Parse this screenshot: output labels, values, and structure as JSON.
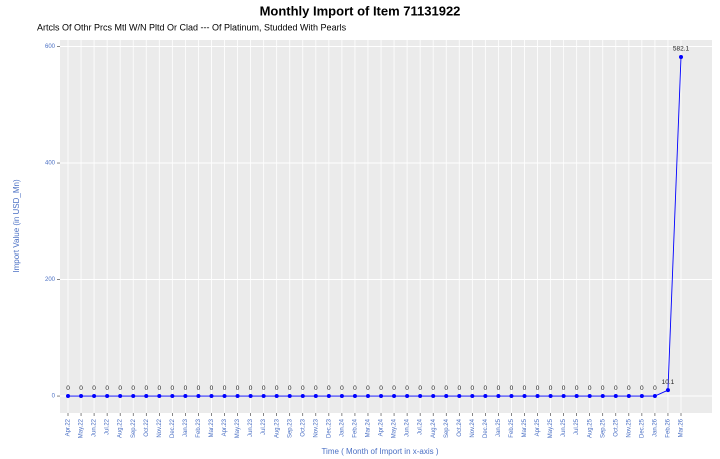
{
  "chart_data": {
    "type": "line",
    "title": "Monthly Import of Item 71131922",
    "subtitle": "Artcls Of Othr Prcs Mtl W/N Pltd Or Clad --- Of Platinum, Studded With Pearls",
    "x_label": "Time ( Month of Import in x-axis )",
    "y_label": "Import  Value (in USD_Mn)",
    "categories": [
      "Apr.22",
      "May.22",
      "Jun.22",
      "Jul.22",
      "Aug.22",
      "Sep.22",
      "Oct.22",
      "Nov.22",
      "Dec.22",
      "Jan.23",
      "Feb.23",
      "Mar.23",
      "Apr.23",
      "May.23",
      "Jun.23",
      "Jul.23",
      "Aug.23",
      "Sep.23",
      "Oct.23",
      "Nov.23",
      "Dec.23",
      "Jan.24",
      "Feb.24",
      "Mar.24",
      "Apr.24",
      "May.24",
      "Jun.24",
      "Jul.24",
      "Aug.24",
      "Sep.24",
      "Oct.24",
      "Nov.24",
      "Dec.24",
      "Jan.25",
      "Feb.25",
      "Mar.25",
      "Apr.25",
      "May.25",
      "Jun.25",
      "Jul.25",
      "Aug.25",
      "Sep.25",
      "Oct.25",
      "Nov.25",
      "Dec.25",
      "Jan.26",
      "Feb.26",
      "Mar.26"
    ],
    "values": [
      0,
      0,
      0,
      0,
      0,
      0,
      0,
      0,
      0,
      0,
      0,
      0,
      0,
      0,
      0,
      0,
      0,
      0,
      0,
      0,
      0,
      0,
      0,
      0,
      0,
      0,
      0,
      0,
      0,
      0,
      0,
      0,
      0,
      0,
      0,
      0,
      0,
      0,
      0,
      0,
      0,
      0,
      0,
      0,
      0,
      0,
      10.1,
      582.1
    ],
    "color": "#0000ff",
    "ylim": [
      -29.1,
      611.2
    ],
    "yticks": [
      0,
      200,
      400,
      600
    ],
    "grid": true
  }
}
